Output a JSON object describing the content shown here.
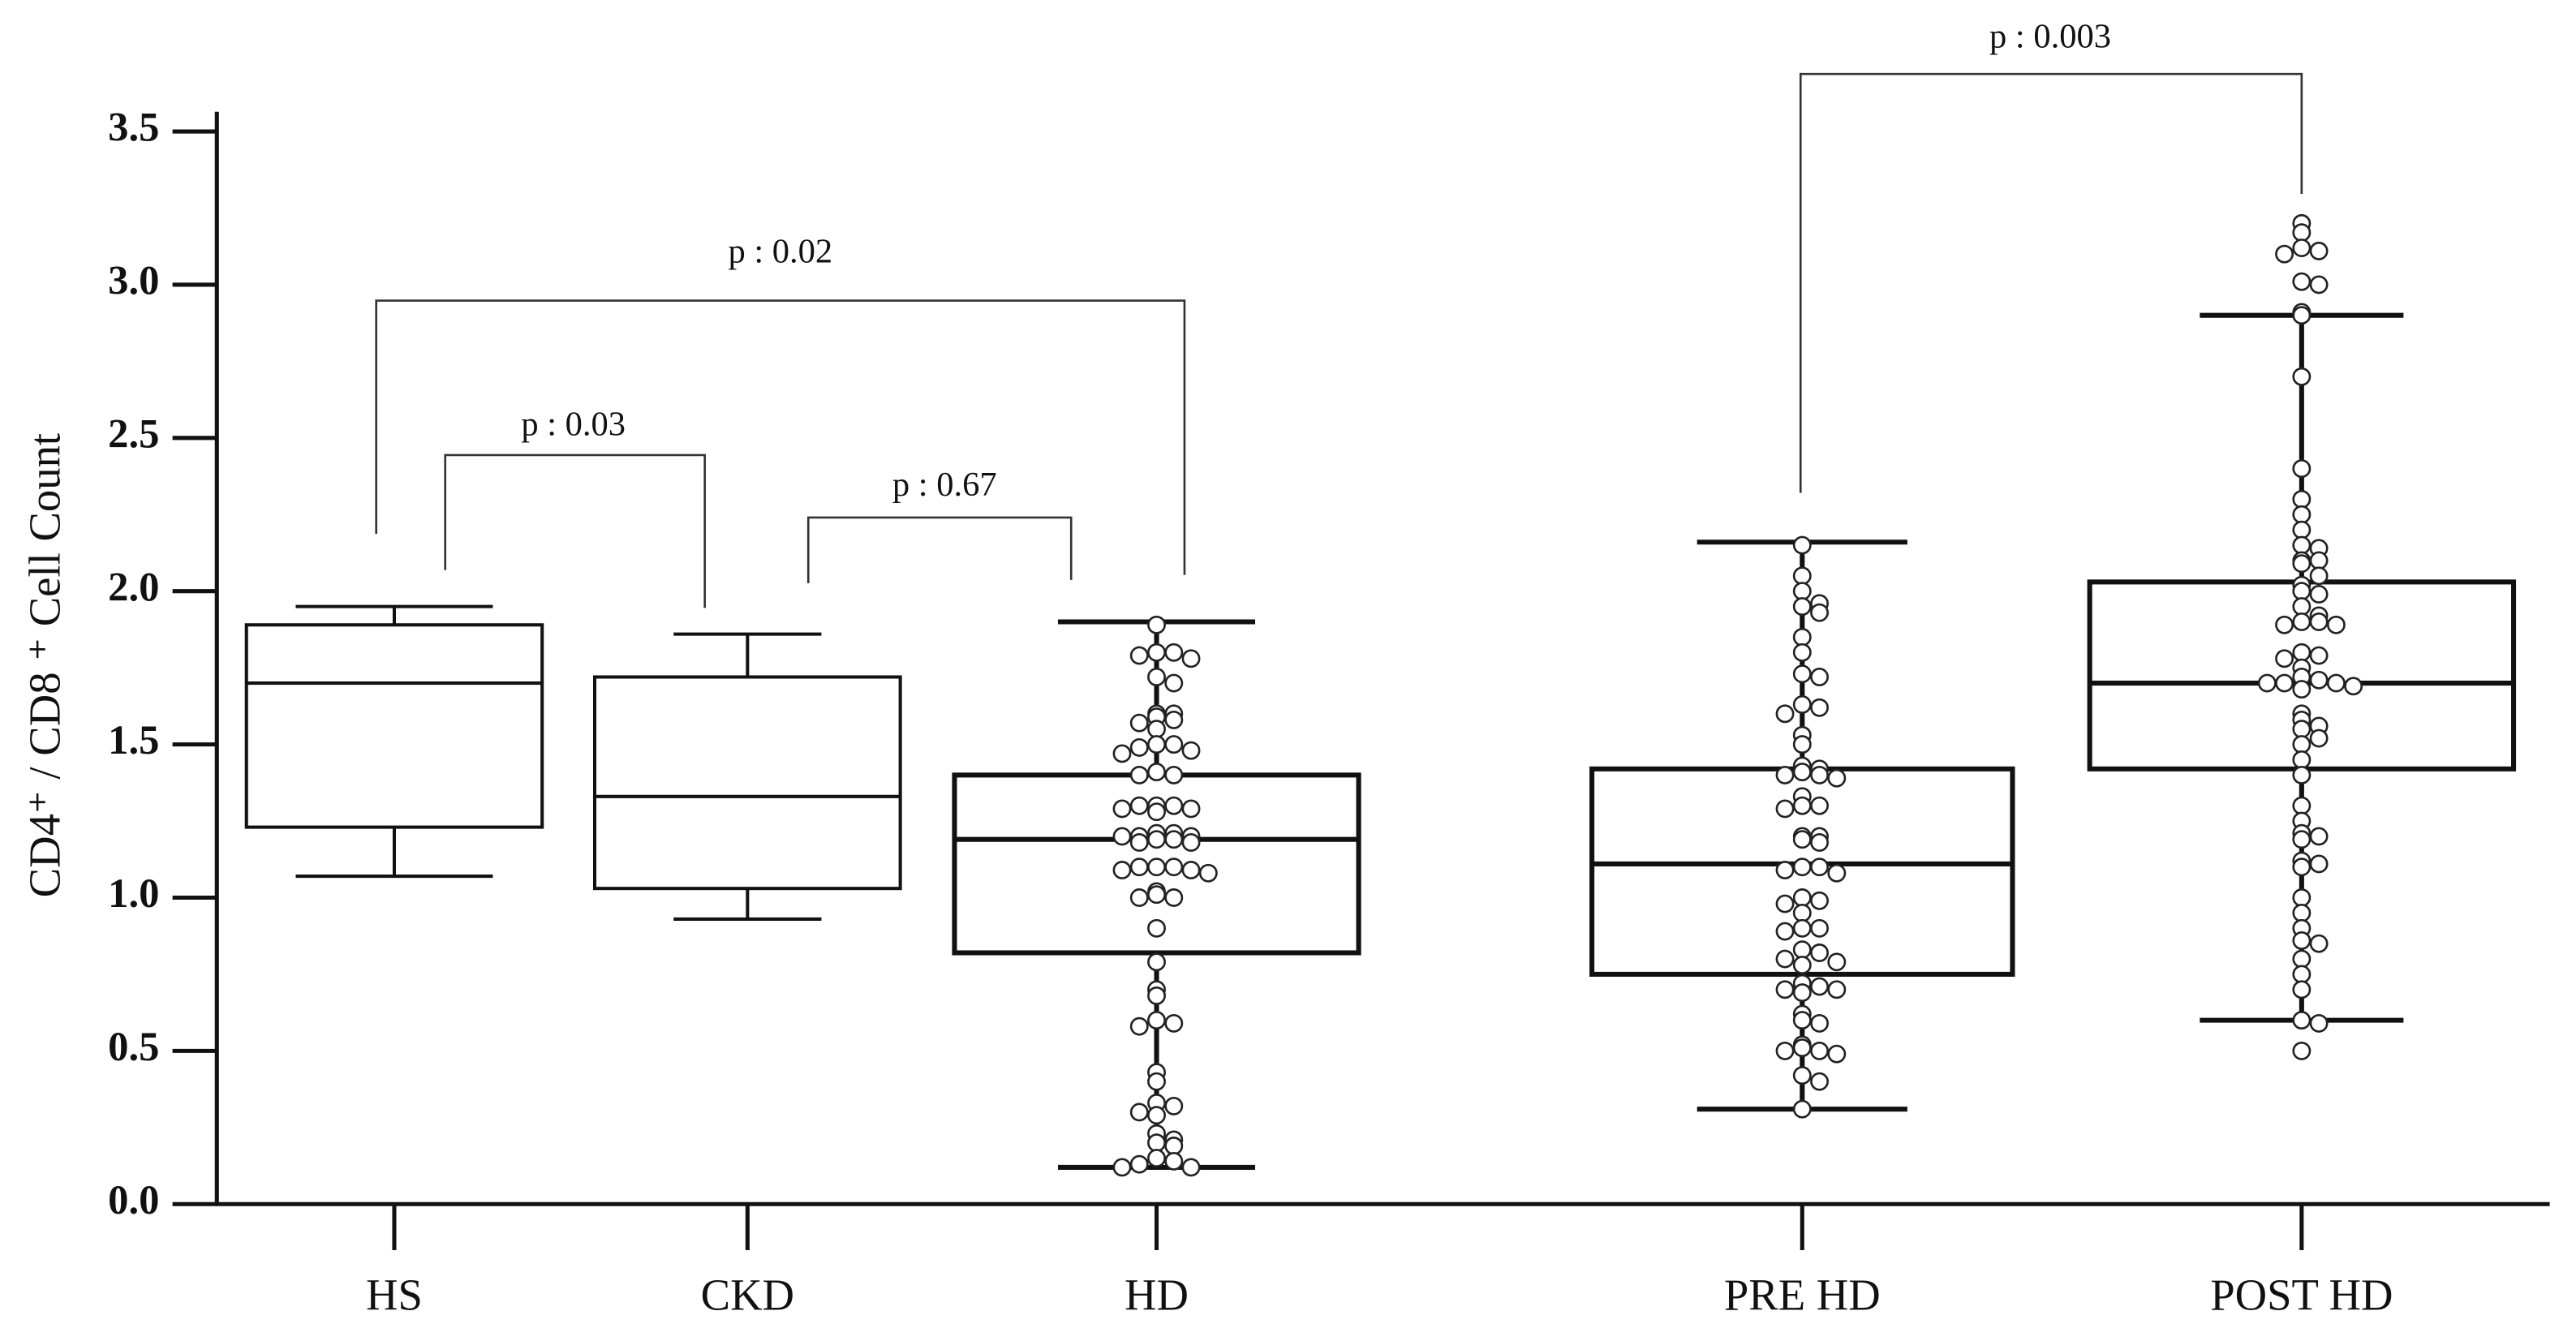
{
  "chart_data": {
    "type": "box",
    "y_label": "CD4⁺ / CD8 ⁺ Cell Count",
    "categories": [
      "HS",
      "CKD",
      "HD",
      "PRE HD",
      "POST HD"
    ],
    "boxes": [
      {
        "min": 1.07,
        "q1": 1.23,
        "median": 1.7,
        "q3": 1.89,
        "max": 1.95
      },
      {
        "min": 0.93,
        "q1": 1.03,
        "median": 1.33,
        "q3": 1.72,
        "max": 1.86
      },
      {
        "min": 0.12,
        "q1": 0.82,
        "median": 1.19,
        "q3": 1.4,
        "max": 1.9
      },
      {
        "min": 0.31,
        "q1": 0.75,
        "median": 1.11,
        "q3": 1.42,
        "max": 2.16
      },
      {
        "min": 0.6,
        "q1": 1.42,
        "median": 1.7,
        "q3": 2.03,
        "max": 2.9
      }
    ],
    "points": [
      null,
      null,
      [
        1.89,
        1.8,
        1.8,
        1.79,
        1.78,
        1.72,
        1.7,
        1.6,
        1.6,
        1.59,
        1.58,
        1.57,
        1.55,
        1.5,
        1.5,
        1.49,
        1.48,
        1.47,
        1.41,
        1.4,
        1.4,
        1.3,
        1.3,
        1.3,
        1.29,
        1.29,
        1.28,
        1.21,
        1.21,
        1.2,
        1.2,
        1.2,
        1.19,
        1.19,
        1.18,
        1.18,
        1.1,
        1.1,
        1.1,
        1.09,
        1.09,
        1.08,
        1.02,
        1.01,
        1.0,
        1.0,
        0.9,
        0.79,
        0.7,
        0.68,
        0.6,
        0.59,
        0.58,
        0.43,
        0.4,
        0.33,
        0.32,
        0.3,
        0.29,
        0.23,
        0.21,
        0.2,
        0.19,
        0.15,
        0.14,
        0.13,
        0.12,
        0.12
      ],
      [
        2.15,
        2.05,
        2.0,
        1.96,
        1.95,
        1.93,
        1.85,
        1.8,
        1.73,
        1.72,
        1.63,
        1.62,
        1.6,
        1.53,
        1.5,
        1.43,
        1.42,
        1.41,
        1.4,
        1.4,
        1.39,
        1.33,
        1.3,
        1.3,
        1.29,
        1.2,
        1.2,
        1.19,
        1.18,
        1.1,
        1.1,
        1.09,
        1.08,
        1.0,
        0.99,
        0.98,
        0.95,
        0.9,
        0.9,
        0.89,
        0.83,
        0.82,
        0.8,
        0.79,
        0.78,
        0.72,
        0.71,
        0.7,
        0.7,
        0.69,
        0.62,
        0.6,
        0.59,
        0.52,
        0.51,
        0.5,
        0.5,
        0.49,
        0.42,
        0.4,
        0.31
      ],
      [
        3.2,
        3.17,
        3.12,
        3.11,
        3.1,
        3.01,
        3.0,
        2.91,
        2.9,
        2.7,
        2.4,
        2.3,
        2.25,
        2.2,
        2.15,
        2.14,
        2.1,
        2.1,
        2.09,
        2.05,
        2.02,
        2.0,
        1.99,
        1.95,
        1.92,
        1.9,
        1.9,
        1.89,
        1.89,
        1.8,
        1.79,
        1.78,
        1.75,
        1.72,
        1.71,
        1.7,
        1.7,
        1.7,
        1.69,
        1.68,
        1.6,
        1.58,
        1.56,
        1.55,
        1.52,
        1.5,
        1.45,
        1.4,
        1.3,
        1.25,
        1.21,
        1.2,
        1.19,
        1.12,
        1.11,
        1.1,
        1.0,
        0.95,
        0.9,
        0.86,
        0.85,
        0.8,
        0.75,
        0.7,
        0.6,
        0.59,
        0.5
      ]
    ],
    "annotations": [
      "p : 0.02",
      "p : 0.03",
      "p : 0.67",
      "p : 0.003"
    ],
    "ylim": [
      0,
      3.5
    ],
    "yticks": [
      {
        "value": 0,
        "label": "0.0"
      },
      0.5,
      {
        "value": 1,
        "label": "1.0"
      },
      1.5,
      {
        "value": 2,
        "label": "2.0"
      },
      2.5,
      {
        "value": 3,
        "label": "3.0"
      },
      3.5
    ]
  }
}
